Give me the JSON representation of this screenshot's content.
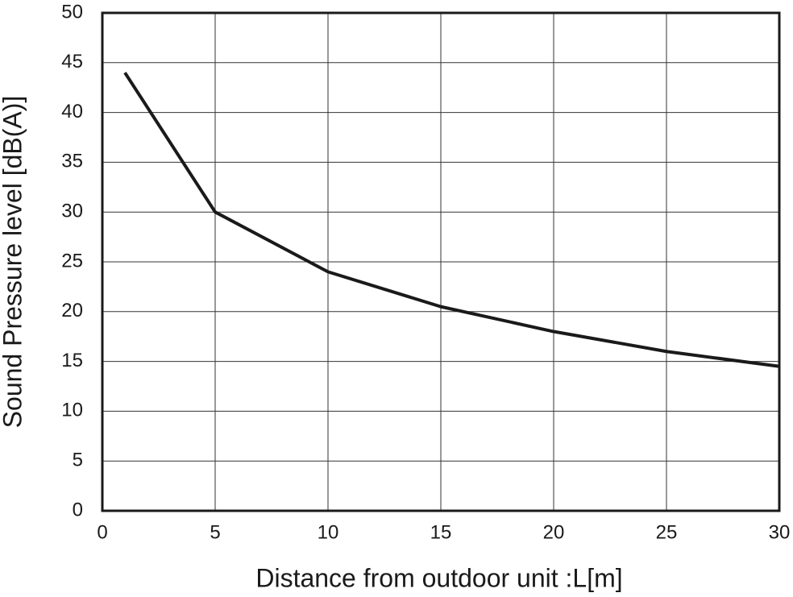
{
  "chart_data": {
    "type": "line",
    "x_label": "Distance from outdoor unit :L[m]",
    "y_label": "Sound Pressure level [dB(A)]",
    "x": [
      1,
      5,
      10,
      15,
      20,
      25,
      30
    ],
    "values": [
      44,
      30,
      24,
      20.5,
      18,
      16,
      14.5
    ],
    "color": "#1a1a1a",
    "xlim": [
      0,
      30
    ],
    "xticks": [
      0,
      5,
      10,
      15,
      20,
      25,
      30
    ],
    "ylim": [
      0,
      50
    ],
    "yticks": [
      0,
      5,
      10,
      15,
      20,
      25,
      30,
      35,
      40,
      45,
      50
    ],
    "grid": true
  }
}
